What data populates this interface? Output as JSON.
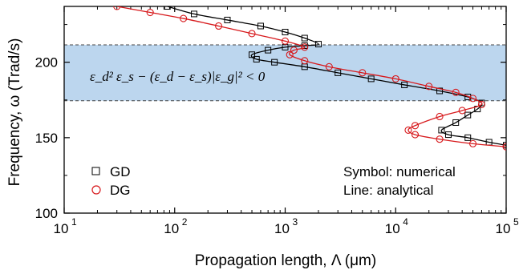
{
  "chart_data": {
    "type": "scatter",
    "xlabel": "Propagation length, Λ (μm)",
    "ylabel": "Frequency, ω (Trad/s)",
    "x_scale": "log",
    "xlim": [
      10,
      100000
    ],
    "ylim": [
      100,
      237
    ],
    "x_ticks": [
      10,
      100,
      1000,
      10000,
      100000
    ],
    "x_tick_labels": [
      "10",
      "10",
      "10",
      "10",
      "10"
    ],
    "x_tick_exponents": [
      "1",
      "2",
      "3",
      "4",
      "5"
    ],
    "y_ticks": [
      100,
      150,
      200
    ],
    "y_tick_labels": [
      "100",
      "150",
      "200"
    ],
    "band": {
      "y_low": 174.5,
      "y_high": 211.5,
      "color": "#bcd6ee",
      "formula": "ε_d² ε_s − (ε_d − ε_s)|ε_g|² < 0"
    },
    "annotations": [
      "Symbol: numerical",
      "Line: analytical"
    ],
    "legend_position": "bottom-left",
    "series": [
      {
        "name": "GD",
        "marker": "square",
        "color": "#000000",
        "line_color": "#000000",
        "points": [
          [
            86,
            237
          ],
          [
            150,
            232
          ],
          [
            300,
            228
          ],
          [
            600,
            224
          ],
          [
            1000,
            220
          ],
          [
            1500,
            216
          ],
          [
            2000,
            212
          ],
          [
            1500,
            211
          ],
          [
            1000,
            210
          ],
          [
            700,
            208
          ],
          [
            500,
            205
          ],
          [
            550,
            202
          ],
          [
            800,
            200
          ],
          [
            1500,
            197
          ],
          [
            3000,
            193
          ],
          [
            6000,
            189
          ],
          [
            12000,
            185
          ],
          [
            25000,
            181
          ],
          [
            45000,
            177
          ],
          [
            60000,
            173
          ],
          [
            55000,
            169
          ],
          [
            45000,
            165
          ],
          [
            35000,
            160
          ],
          [
            26000,
            155
          ],
          [
            30000,
            152
          ],
          [
            45000,
            150
          ],
          [
            70000,
            147
          ],
          [
            100000,
            145
          ]
        ]
      },
      {
        "name": "DG",
        "marker": "circle",
        "color": "#d7191c",
        "line_color": "#d7191c",
        "points": [
          [
            30,
            237
          ],
          [
            60,
            233
          ],
          [
            120,
            229
          ],
          [
            250,
            224
          ],
          [
            500,
            219
          ],
          [
            1000,
            214
          ],
          [
            1500,
            210
          ],
          [
            1200,
            208
          ],
          [
            1100,
            205
          ],
          [
            1500,
            201
          ],
          [
            2500,
            197
          ],
          [
            5000,
            193
          ],
          [
            10000,
            189
          ],
          [
            20000,
            184
          ],
          [
            35000,
            180
          ],
          [
            50000,
            176
          ],
          [
            60000,
            172
          ],
          [
            40000,
            168
          ],
          [
            25000,
            164
          ],
          [
            15000,
            158
          ],
          [
            13000,
            155
          ],
          [
            15000,
            152
          ],
          [
            25000,
            149
          ],
          [
            50000,
            146
          ],
          [
            100000,
            144
          ]
        ]
      }
    ]
  }
}
